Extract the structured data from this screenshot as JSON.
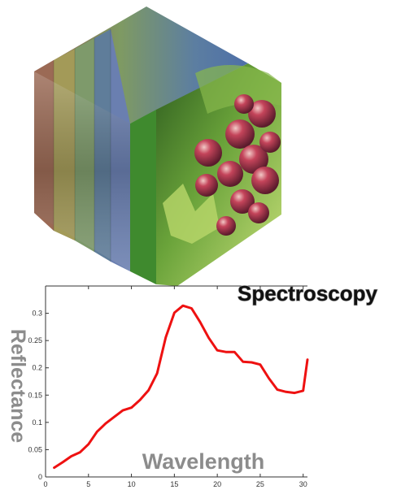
{
  "colors": {
    "line": "#ee1111",
    "axis": "#333333",
    "title_fill": "#111111",
    "title_stroke": "#9a9a9a",
    "label_gray": "#8c8c8c",
    "strip_colors": [
      "#9b6a55",
      "#a39a58",
      "#7e9a6b",
      "#5f7d9a",
      "#6a7fb0",
      "#3f8a2e"
    ]
  },
  "cube": {
    "icon": "grape-hyperspectral-cube"
  },
  "chart_data": {
    "type": "line",
    "title": "Spectroscopy",
    "xlabel": "Wavelength",
    "ylabel": "Reflectance",
    "xlim": [
      0,
      30.5
    ],
    "ylim": [
      0,
      0.35
    ],
    "xticks": [
      0,
      5,
      10,
      15,
      20,
      25,
      30
    ],
    "yticks": [
      0,
      0.05,
      0.1,
      0.15,
      0.2,
      0.25,
      0.3
    ],
    "x_tick_labels": [
      "0",
      "5",
      "10",
      "15",
      "20",
      "25",
      "30"
    ],
    "y_tick_labels": [
      "0",
      "0.05",
      "0.1",
      "0.15",
      "0.2",
      "0.25",
      "0.3"
    ],
    "grid": false,
    "series": [
      {
        "x": [
          1,
          2,
          3,
          4,
          5,
          6,
          7,
          8,
          9,
          10,
          11,
          12,
          13,
          14,
          15,
          16,
          17,
          18,
          19,
          20,
          21,
          22,
          23,
          24,
          25,
          26,
          27,
          28,
          29,
          30,
          30.5
        ],
        "y": [
          0.017,
          0.027,
          0.038,
          0.045,
          0.06,
          0.083,
          0.098,
          0.11,
          0.122,
          0.127,
          0.141,
          0.159,
          0.19,
          0.256,
          0.301,
          0.314,
          0.309,
          0.284,
          0.255,
          0.232,
          0.229,
          0.229,
          0.211,
          0.21,
          0.206,
          0.181,
          0.16,
          0.156,
          0.154,
          0.158,
          0.215
        ]
      }
    ]
  }
}
